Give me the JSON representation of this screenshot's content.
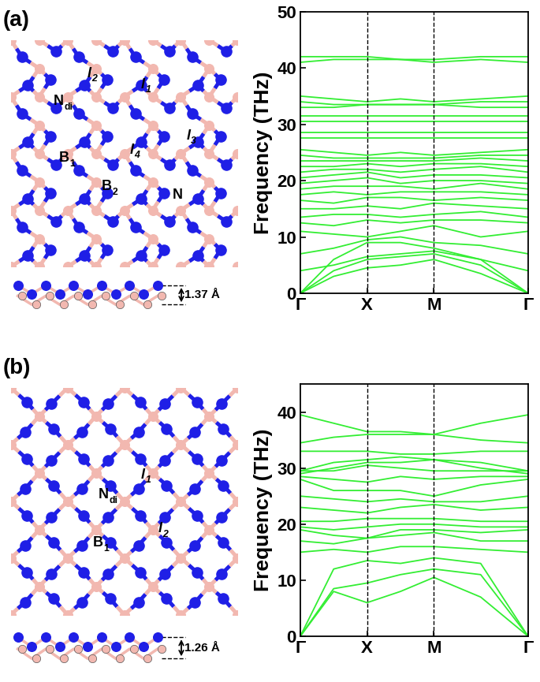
{
  "panel_labels": [
    "(a)",
    "(b)"
  ],
  "structures": [
    {
      "labels": [
        {
          "text": "N",
          "sub": "di"
        },
        {
          "text": "l",
          "sub": "2",
          "style": "italic"
        },
        {
          "text": "l",
          "sub": "1",
          "style": "italic"
        },
        {
          "text": "B",
          "sub": "1"
        },
        {
          "text": "l",
          "sub": "4",
          "style": "italic"
        },
        {
          "text": "l",
          "sub": "3",
          "style": "italic"
        },
        {
          "text": "B",
          "sub": "2"
        },
        {
          "text": "N"
        }
      ],
      "thickness": "1.37 Å"
    },
    {
      "labels": [
        {
          "text": "N",
          "sub": "di"
        },
        {
          "text": "l",
          "sub": "1",
          "style": "italic"
        },
        {
          "text": "B",
          "sub": "1"
        },
        {
          "text": "l",
          "sub": "2",
          "style": "italic"
        }
      ],
      "thickness": "1.26 Å"
    }
  ],
  "chart_data": [
    {
      "type": "line",
      "ylabel": "Frequency (THz)",
      "color": "#33ee33",
      "x": [
        0,
        0.5,
        1,
        1.5,
        2,
        2.7,
        3.41
      ],
      "xlim": [
        0,
        3.41
      ],
      "xticks": [
        {
          "value": 0,
          "label": "Γ"
        },
        {
          "value": 1,
          "label": "X"
        },
        {
          "value": 2,
          "label": "M"
        },
        {
          "value": 3.41,
          "label": "Γ"
        }
      ],
      "ylim": [
        0,
        50
      ],
      "yticks": [
        0,
        10,
        20,
        30,
        40,
        50
      ],
      "series": [
        {
          "values": [
            0,
            3,
            4.5,
            5,
            6,
            3.5,
            0
          ]
        },
        {
          "values": [
            0,
            4,
            6,
            6.5,
            7,
            5,
            0
          ]
        },
        {
          "values": [
            0,
            6,
            9,
            9,
            8,
            6,
            0
          ]
        },
        {
          "values": [
            4,
            5,
            6.5,
            7,
            7.5,
            6,
            4
          ]
        },
        {
          "values": [
            7,
            8,
            9.5,
            10,
            9,
            8.5,
            7
          ]
        },
        {
          "values": [
            11,
            10.5,
            10,
            11,
            12,
            10,
            11
          ]
        },
        {
          "values": [
            12.5,
            12,
            13,
            12.5,
            13,
            13,
            12.5
          ]
        },
        {
          "values": [
            13.5,
            14,
            14,
            13.5,
            14,
            14.5,
            13.5
          ]
        },
        {
          "values": [
            15,
            15,
            15.5,
            15,
            16,
            15.5,
            15
          ]
        },
        {
          "values": [
            16.5,
            16,
            17,
            17,
            16.5,
            17,
            16.5
          ]
        },
        {
          "values": [
            17.5,
            18,
            17.5,
            18,
            18,
            18,
            17.5
          ]
        },
        {
          "values": [
            18.5,
            19,
            19,
            19,
            18.5,
            19.5,
            18.5
          ]
        },
        {
          "values": [
            19.5,
            20,
            20.5,
            19.5,
            20,
            20,
            19.5
          ]
        },
        {
          "values": [
            20.5,
            21,
            21.5,
            20.5,
            21,
            21,
            20.5
          ]
        },
        {
          "values": [
            21.5,
            22,
            22,
            21.5,
            22,
            22.5,
            21.5
          ]
        },
        {
          "values": [
            22.5,
            22.5,
            23,
            22.5,
            23,
            23,
            22.5
          ]
        },
        {
          "values": [
            23.5,
            23.5,
            23.5,
            23.5,
            23.5,
            24,
            23.5
          ]
        },
        {
          "values": [
            24.5,
            24,
            24,
            24,
            24,
            24.5,
            24.5
          ]
        },
        {
          "values": [
            25.5,
            25,
            24.5,
            25,
            24.5,
            25,
            25.5
          ]
        },
        {
          "values": [
            27.5,
            27.5,
            27.5,
            27.5,
            27.5,
            27.5,
            27.5
          ]
        },
        {
          "values": [
            28.5,
            28.5,
            28.5,
            28.5,
            28.5,
            28.5,
            28.5
          ]
        },
        {
          "values": [
            30.5,
            30.5,
            30.5,
            30.5,
            30.5,
            30.5,
            30.5
          ]
        },
        {
          "values": [
            31.5,
            31.5,
            31.5,
            31.5,
            31.5,
            31.5,
            31.5
          ]
        },
        {
          "values": [
            33,
            33,
            33.5,
            33.5,
            33.5,
            33,
            33
          ]
        },
        {
          "values": [
            34,
            33.5,
            33.5,
            33.5,
            33.5,
            34,
            34
          ]
        },
        {
          "values": [
            35,
            34.5,
            34,
            34.5,
            34,
            34.5,
            35
          ]
        },
        {
          "values": [
            41,
            41.5,
            41.5,
            41.5,
            41,
            41.5,
            41
          ]
        },
        {
          "values": [
            42,
            42,
            42,
            41.5,
            41.5,
            42,
            42
          ]
        }
      ]
    },
    {
      "type": "line",
      "ylabel": "Frequency (THz)",
      "color": "#33ee33",
      "x": [
        0,
        0.5,
        1,
        1.5,
        2,
        2.7,
        3.41
      ],
      "xlim": [
        0,
        3.41
      ],
      "xticks": [
        {
          "value": 0,
          "label": "Γ"
        },
        {
          "value": 1,
          "label": "X"
        },
        {
          "value": 2,
          "label": "M"
        },
        {
          "value": 3.41,
          "label": "Γ"
        }
      ],
      "ylim": [
        0,
        45
      ],
      "yticks": [
        0,
        10,
        20,
        30,
        40
      ],
      "series": [
        {
          "values": [
            0,
            8,
            6,
            8,
            10.5,
            7,
            0
          ]
        },
        {
          "values": [
            0,
            8.5,
            9.5,
            11,
            12,
            11,
            0
          ]
        },
        {
          "values": [
            0,
            12,
            13.5,
            13,
            14,
            13,
            0
          ]
        },
        {
          "values": [
            15,
            15.5,
            15,
            16,
            16,
            15.5,
            15
          ]
        },
        {
          "values": [
            17,
            16.5,
            17.5,
            18,
            18.5,
            17,
            17
          ]
        },
        {
          "values": [
            19,
            18,
            17.5,
            19,
            19,
            18.5,
            19
          ]
        },
        {
          "values": [
            19.5,
            19,
            19.5,
            20,
            20,
            19.5,
            19.5
          ]
        },
        {
          "values": [
            20.5,
            20.5,
            21,
            21,
            21,
            20.5,
            20.5
          ]
        },
        {
          "values": [
            23,
            22.5,
            22,
            23,
            23.5,
            22.5,
            23
          ]
        },
        {
          "values": [
            25,
            24.5,
            24,
            24.5,
            24,
            24,
            25
          ]
        },
        {
          "values": [
            28,
            26,
            26,
            26,
            25,
            27,
            28
          ]
        },
        {
          "values": [
            28.5,
            28,
            27.5,
            28.5,
            28,
            28.5,
            28.5
          ]
        },
        {
          "values": [
            29,
            30,
            31,
            31,
            31.5,
            30,
            29
          ]
        },
        {
          "values": [
            29.5,
            29.5,
            30.5,
            30,
            29.5,
            29.5,
            29.5
          ]
        },
        {
          "values": [
            29.5,
            31,
            31.5,
            32,
            31.5,
            31,
            29.5
          ]
        },
        {
          "values": [
            33,
            33,
            33,
            32.5,
            32.5,
            33,
            33
          ]
        },
        {
          "values": [
            34.5,
            35.5,
            36,
            36,
            36,
            35,
            34.5
          ]
        },
        {
          "values": [
            39.5,
            38,
            36.5,
            36.5,
            36,
            38,
            39.5
          ]
        }
      ]
    }
  ]
}
